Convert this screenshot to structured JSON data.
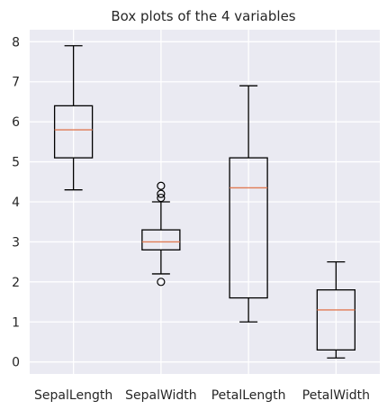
{
  "chart_data": {
    "type": "box",
    "title": "Box plots of the 4 variables",
    "xlabel": "",
    "ylabel": "",
    "categories": [
      "SepalLength",
      "SepalWidth",
      "PetalLength",
      "PetalWidth"
    ],
    "ylim": [
      -0.3,
      8.3
    ],
    "yticks": [
      0,
      1,
      2,
      3,
      4,
      5,
      6,
      7,
      8
    ],
    "grid": true,
    "background_color": "#eaeaf2",
    "grid_color": "#ffffff",
    "median_color": "#e07b54",
    "box_color": "#000000",
    "boxes": [
      {
        "name": "SepalLength",
        "whisker_low": 4.3,
        "q1": 5.1,
        "median": 5.8,
        "q3": 6.4,
        "whisker_high": 7.9,
        "outliers": []
      },
      {
        "name": "SepalWidth",
        "whisker_low": 2.2,
        "q1": 2.8,
        "median": 3.0,
        "q3": 3.3,
        "whisker_high": 4.0,
        "outliers": [
          4.4,
          4.2,
          4.1,
          2.0
        ]
      },
      {
        "name": "PetalLength",
        "whisker_low": 1.0,
        "q1": 1.6,
        "median": 4.35,
        "q3": 5.1,
        "whisker_high": 6.9,
        "outliers": []
      },
      {
        "name": "PetalWidth",
        "whisker_low": 0.1,
        "q1": 0.3,
        "median": 1.3,
        "q3": 1.8,
        "whisker_high": 2.5,
        "outliers": []
      }
    ]
  }
}
